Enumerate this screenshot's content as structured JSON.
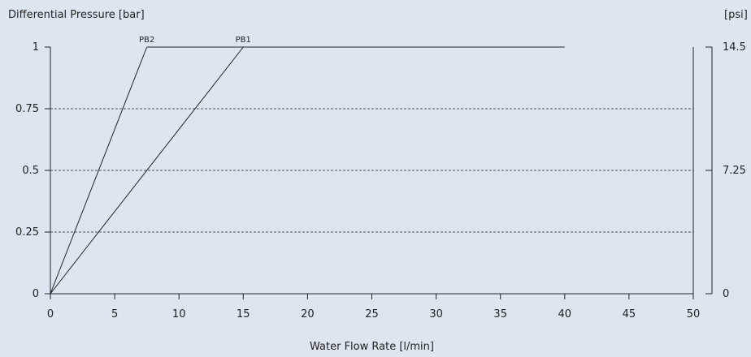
{
  "chart_data": {
    "type": "line",
    "ylabel": "Differential Pressure [bar]",
    "ylabel_right": "[psi]",
    "xlabel": "Water Flow Rate [l/min]",
    "xlim": [
      0,
      50
    ],
    "ylim": [
      0,
      1
    ],
    "x_ticks": [
      0,
      5,
      10,
      15,
      20,
      25,
      30,
      35,
      40,
      45,
      50
    ],
    "y_ticks": [
      0,
      0.25,
      0.5,
      0.75,
      1
    ],
    "y_tick_labels": [
      "0",
      "0.25",
      "0.5",
      "0.75",
      "1"
    ],
    "y_right_ticks": [
      0,
      0.5,
      1
    ],
    "y_right_tick_labels": [
      "0",
      "7.25",
      "14.5"
    ],
    "grid": "horizontal dashed",
    "series": [
      {
        "name": "PB2",
        "x": [
          0,
          7.5
        ],
        "y": [
          0,
          1
        ]
      },
      {
        "name": "PB1",
        "x": [
          0,
          15
        ],
        "y": [
          0,
          1
        ]
      }
    ],
    "cap_line": {
      "x": [
        7.5,
        40
      ],
      "y": [
        1,
        1
      ]
    }
  },
  "colors": {
    "background": "#dde5f1",
    "line": "#222222"
  }
}
